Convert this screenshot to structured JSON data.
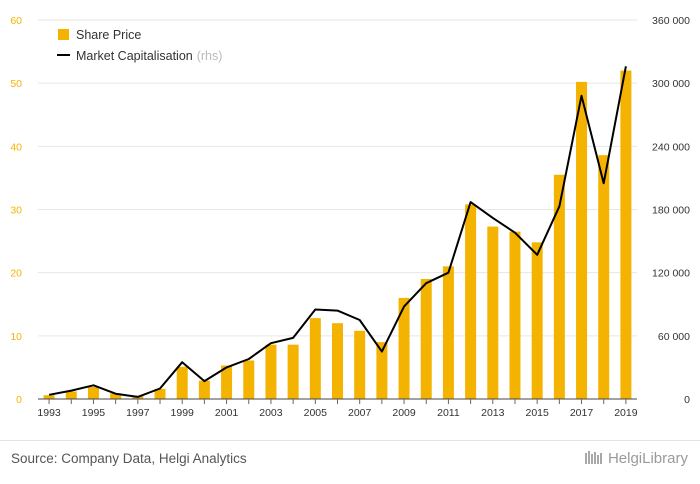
{
  "chart_data": {
    "type": "bar+line",
    "title": "",
    "categories": [
      "1993",
      "1994",
      "1995",
      "1996",
      "1997",
      "1998",
      "1999",
      "2000",
      "2001",
      "2002",
      "2003",
      "2004",
      "2005",
      "2006",
      "2007",
      "2008",
      "2009",
      "2010",
      "2011",
      "2012",
      "2013",
      "2014",
      "2015",
      "2016",
      "2017",
      "2018",
      "2019"
    ],
    "x_tick_labels": [
      "1993",
      "1995",
      "1997",
      "1999",
      "2001",
      "2003",
      "2005",
      "2007",
      "2009",
      "2011",
      "2013",
      "2015",
      "2017",
      "2019"
    ],
    "series": [
      {
        "name": "Share Price",
        "kind": "bar",
        "axis": "left",
        "color": "#f5b301",
        "values": [
          0.6,
          1.2,
          1.9,
          0.9,
          0.5,
          1.6,
          5.1,
          2.9,
          5.3,
          6.1,
          8.6,
          8.6,
          12.8,
          12.0,
          10.8,
          9.0,
          16.0,
          19.0,
          21.0,
          30.8,
          27.3,
          26.5,
          24.8,
          35.5,
          50.2,
          38.6,
          52.0
        ]
      },
      {
        "name": "Market Capitalisation",
        "name_suffix": "(rhs)",
        "kind": "line",
        "axis": "right",
        "color": "#000000",
        "values": [
          4000,
          8000,
          13000,
          5000,
          2000,
          10000,
          35000,
          17000,
          30000,
          38000,
          53000,
          58000,
          85000,
          84000,
          75000,
          45000,
          88000,
          110000,
          120000,
          187000,
          172000,
          158000,
          137000,
          183000,
          288000,
          205000,
          316000
        ]
      }
    ],
    "y_left": {
      "min": 0,
      "max": 60,
      "ticks": [
        "0",
        "10",
        "20",
        "30",
        "40",
        "50",
        "60"
      ],
      "tick_color": "#f5b301"
    },
    "y_right": {
      "min": 0,
      "max": 360000,
      "ticks": [
        "0",
        "60 000",
        "120 000",
        "180 000",
        "240 000",
        "300 000",
        "360 000"
      ]
    },
    "grid": true,
    "legend": {
      "position": "top-left",
      "items": [
        {
          "label": "Share Price",
          "swatch": "square",
          "color": "#f5b301"
        },
        {
          "label": "Market Capitalisation",
          "suffix": "(rhs)",
          "swatch": "line",
          "color": "#000000"
        }
      ]
    }
  },
  "footer": {
    "source": "Source: Company Data, Helgi Analytics",
    "brand": "HelgiLibrary"
  }
}
